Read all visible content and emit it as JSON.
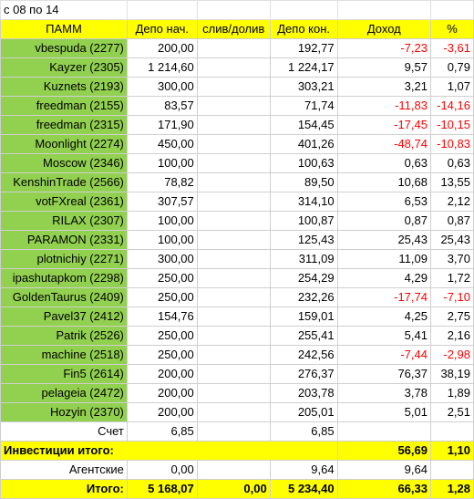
{
  "title": "с 08 по 14",
  "headers": {
    "pamm": "ПАММ",
    "depo_start": "Депо нач.",
    "slivdoliv": "слив/долив",
    "depo_end": "Депо кон.",
    "income": "Доход",
    "percent": "%"
  },
  "rows": [
    {
      "name": "vbespuda (2277)",
      "start": "200,00",
      "slivdoliv": "",
      "end": "192,77",
      "income": "-7,23",
      "pct": "-3,61",
      "neg": true
    },
    {
      "name": "Kayzer (2305)",
      "start": "1 214,60",
      "slivdoliv": "",
      "end": "1 224,17",
      "income": "9,57",
      "pct": "0,79",
      "neg": false
    },
    {
      "name": "Kuznets (2193)",
      "start": "300,00",
      "slivdoliv": "",
      "end": "303,21",
      "income": "3,21",
      "pct": "1,07",
      "neg": false
    },
    {
      "name": "freedman (2155)",
      "start": "83,57",
      "slivdoliv": "",
      "end": "71,74",
      "income": "-11,83",
      "pct": "-14,16",
      "neg": true
    },
    {
      "name": "freedman (2315)",
      "start": "171,90",
      "slivdoliv": "",
      "end": "154,45",
      "income": "-17,45",
      "pct": "-10,15",
      "neg": true
    },
    {
      "name": "Moonlight (2274)",
      "start": "450,00",
      "slivdoliv": "",
      "end": "401,26",
      "income": "-48,74",
      "pct": "-10,83",
      "neg": true
    },
    {
      "name": "Moscow (2346)",
      "start": "100,00",
      "slivdoliv": "",
      "end": "100,63",
      "income": "0,63",
      "pct": "0,63",
      "neg": false
    },
    {
      "name": "KenshinTrade (2566)",
      "start": "78,82",
      "slivdoliv": "",
      "end": "89,50",
      "income": "10,68",
      "pct": "13,55",
      "neg": false
    },
    {
      "name": "votFXreal (2361)",
      "start": "307,57",
      "slivdoliv": "",
      "end": "314,10",
      "income": "6,53",
      "pct": "2,12",
      "neg": false
    },
    {
      "name": "RILAX (2307)",
      "start": "100,00",
      "slivdoliv": "",
      "end": "100,87",
      "income": "0,87",
      "pct": "0,87",
      "neg": false
    },
    {
      "name": "PARAMON (2331)",
      "start": "100,00",
      "slivdoliv": "",
      "end": "125,43",
      "income": "25,43",
      "pct": "25,43",
      "neg": false
    },
    {
      "name": "plotnichiy (2271)",
      "start": "300,00",
      "slivdoliv": "",
      "end": "311,09",
      "income": "11,09",
      "pct": "3,70",
      "neg": false
    },
    {
      "name": "ipashutapkom (2298)",
      "start": "250,00",
      "slivdoliv": "",
      "end": "254,29",
      "income": "4,29",
      "pct": "1,72",
      "neg": false
    },
    {
      "name": "GoldenTaurus (2409)",
      "start": "250,00",
      "slivdoliv": "",
      "end": "232,26",
      "income": "-17,74",
      "pct": "-7,10",
      "neg": true
    },
    {
      "name": "Pavel37 (2412)",
      "start": "154,76",
      "slivdoliv": "",
      "end": "159,01",
      "income": "4,25",
      "pct": "2,75",
      "neg": false
    },
    {
      "name": "Patrik (2526)",
      "start": "250,00",
      "slivdoliv": "",
      "end": "255,41",
      "income": "5,41",
      "pct": "2,16",
      "neg": false
    },
    {
      "name": "machine (2518)",
      "start": "250,00",
      "slivdoliv": "",
      "end": "242,56",
      "income": "-7,44",
      "pct": "-2,98",
      "neg": true
    },
    {
      "name": "Fin5 (2614)",
      "start": "200,00",
      "slivdoliv": "",
      "end": "276,37",
      "income": "76,37",
      "pct": "38,19",
      "neg": false
    },
    {
      "name": "pelageia (2472)",
      "start": "200,00",
      "slivdoliv": "",
      "end": "203,78",
      "income": "3,78",
      "pct": "1,89",
      "neg": false
    },
    {
      "name": "Hozyin (2370)",
      "start": "200,00",
      "slivdoliv": "",
      "end": "205,01",
      "income": "5,01",
      "pct": "2,51",
      "neg": false
    }
  ],
  "schet": {
    "name": "Счет",
    "start": "6,85",
    "end": "6,85"
  },
  "invest_total": {
    "label": "Инвестиции итого:",
    "income": "56,69",
    "pct": "1,10"
  },
  "agent": {
    "label": "Агентские",
    "start": "0,00",
    "end": "9,64",
    "income": "9,64"
  },
  "total": {
    "label": "Итого:",
    "start": "5 168,07",
    "slivdoliv": "0,00",
    "end": "5 234,40",
    "income": "66,33",
    "pct": "1,28"
  },
  "colors": {
    "green": "#92d050",
    "yellow": "#ffff00",
    "negative": "#ff0000"
  }
}
